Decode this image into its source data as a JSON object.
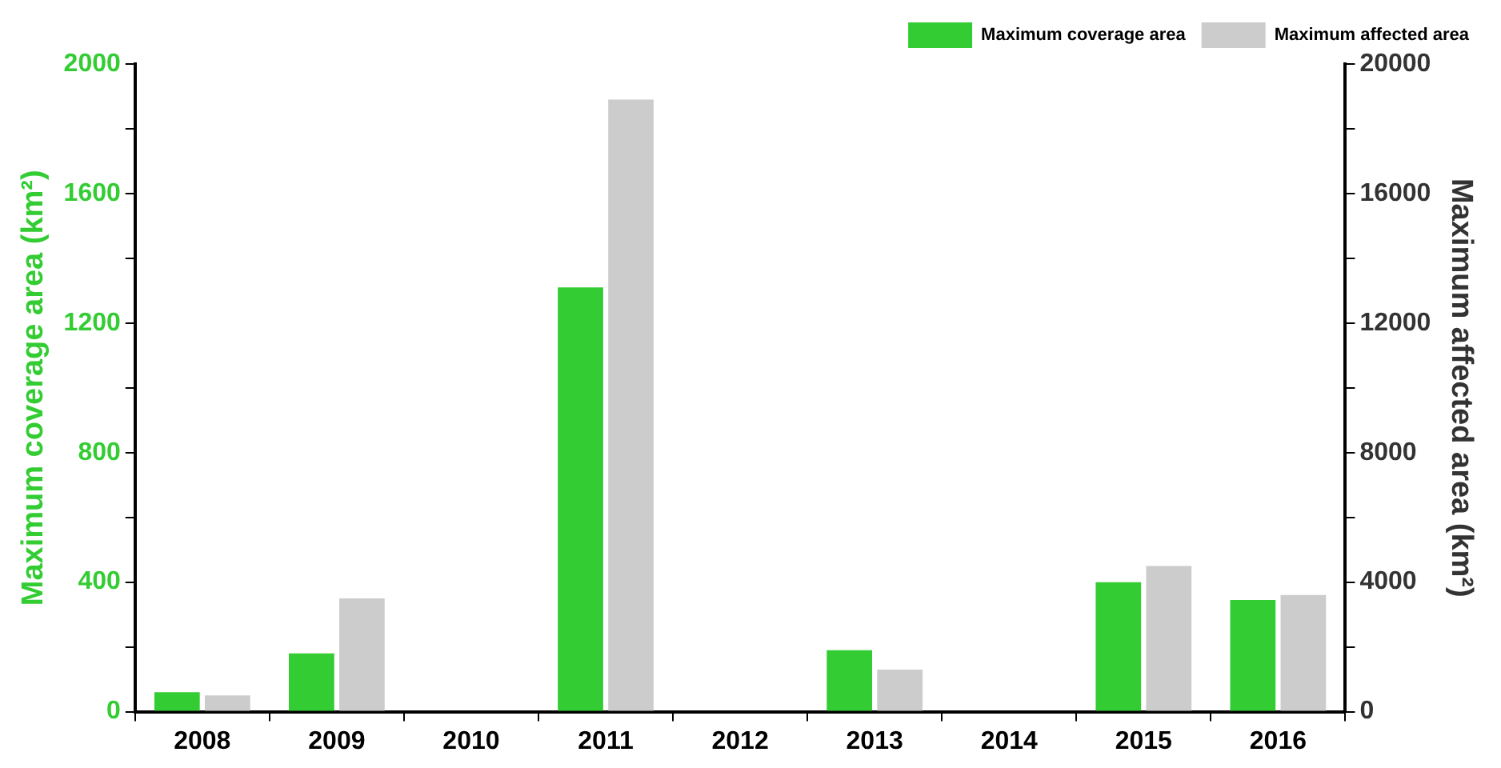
{
  "chart_data": {
    "type": "bar",
    "xlabel": null,
    "ylabel": "Maximum coverage area (km²)",
    "y2label": "Maximum affected area (km²)",
    "categories": [
      "2008",
      "2009",
      "2010",
      "2011",
      "2012",
      "2013",
      "2014",
      "2015",
      "2016"
    ],
    "series": [
      {
        "name": "Maximum coverage area",
        "color": "#33cc33",
        "values": [
          60,
          180,
          null,
          1310,
          null,
          190,
          null,
          400,
          345
        ]
      },
      {
        "name": "Maximum affected area",
        "color": "#cccccc",
        "axis": "y2",
        "values": [
          500,
          3500,
          null,
          18900,
          null,
          1300,
          null,
          4500,
          3600
        ]
      }
    ],
    "ylim": [
      0,
      2000
    ],
    "yticks": [
      0,
      {
        "value": 200,
        "label": null
      },
      400,
      {
        "value": 600,
        "label": null
      },
      800,
      {
        "value": 1000,
        "label": null
      },
      1200,
      {
        "value": 1400,
        "label": null
      },
      1600,
      {
        "value": 1800,
        "label": null
      },
      2000
    ],
    "y2lim": [
      0,
      20000
    ],
    "y2ticks": [
      0,
      {
        "value": 2000,
        "label": null
      },
      4000,
      {
        "value": 6000,
        "label": null
      },
      8000,
      {
        "value": 10000,
        "label": null
      },
      12000,
      {
        "value": 14000,
        "label": null
      },
      16000,
      {
        "value": 18000,
        "label": null
      },
      20000
    ],
    "grid": false,
    "legend": "top right"
  }
}
